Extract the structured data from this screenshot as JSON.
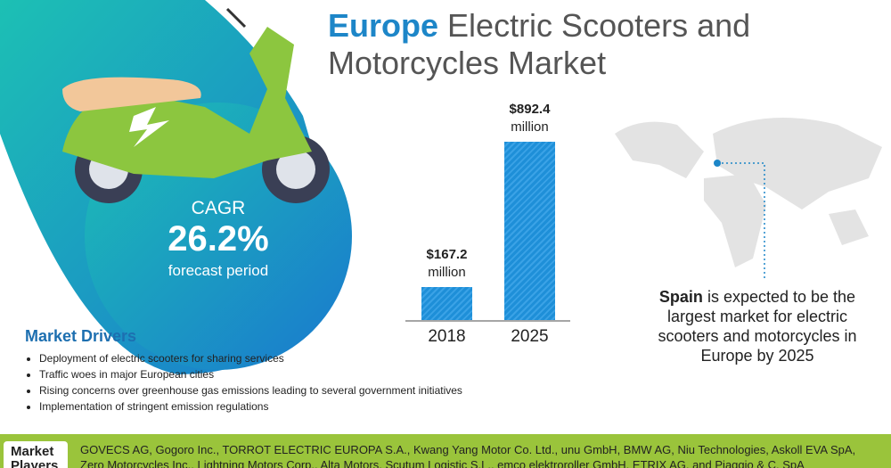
{
  "title": {
    "bold": "Europe",
    "rest": "Electric Scooters and Motorcycles Market"
  },
  "cagr": {
    "label": "CAGR",
    "value": "26.2%",
    "caption": "forecast period"
  },
  "chart_data": {
    "type": "bar",
    "categories": [
      "2018",
      "2025"
    ],
    "values": [
      167.2,
      892.4
    ],
    "value_labels": [
      "$167.2\nmillion",
      "$892.4\nmillion"
    ],
    "color": "#1e8fd8"
  },
  "spain": {
    "bold": "Spain",
    "rest": "is expected to be the largest market for electric scooters and motorcycles in Europe by 2025"
  },
  "drivers": {
    "title": "Market Drivers",
    "items": [
      "Deployment of electric scooters for sharing services",
      "Traffic woes in major European cities",
      "Rising concerns over greenhouse gas emissions leading to several government initiatives",
      "Implementation of stringent emission regulations"
    ]
  },
  "players": {
    "label": "Market Players",
    "text": "GOVECS AG, Gogoro Inc., TORROT ELECTRIC EUROPA S.A., Kwang Yang Motor Co. Ltd., unu GmbH, BMW AG, Niu Technologies, Askoll EVA SpA, Zero Motorcycles Inc., Lightning Motors Corp., Alta Motors, Scutum Logistic S.L., emco elektroroller GmbH, ETRIX AG, and Piaggio & C. SpA"
  }
}
